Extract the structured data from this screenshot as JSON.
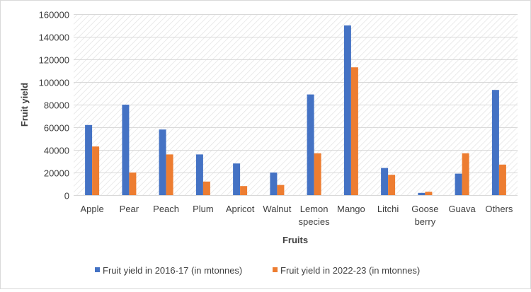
{
  "chart_data": {
    "type": "bar",
    "xlabel": "Fruits",
    "ylabel": "Fruit yield",
    "ylim": [
      0,
      160000
    ],
    "yticks": [
      0,
      20000,
      40000,
      60000,
      80000,
      100000,
      120000,
      140000,
      160000
    ],
    "grid": true,
    "legend_position": "bottom",
    "categories": [
      [
        "Apple"
      ],
      [
        "Pear"
      ],
      [
        "Peach"
      ],
      [
        "Plum"
      ],
      [
        "Apricot"
      ],
      [
        "Walnut"
      ],
      [
        "Lemon",
        "species"
      ],
      [
        "Mango"
      ],
      [
        "Litchi"
      ],
      [
        "Goose",
        "berry"
      ],
      [
        "Guava"
      ],
      [
        "Others"
      ]
    ],
    "series": [
      {
        "name": "Fruit yield in 2016-17 (in mtonnes)",
        "color": "#4472C4",
        "values": [
          62000,
          80000,
          58000,
          36000,
          28000,
          20000,
          89000,
          150000,
          24000,
          2000,
          19000,
          93000
        ]
      },
      {
        "name": "Fruit yield in 2022-23 (in mtonnes)",
        "color": "#ED7D31",
        "values": [
          43000,
          20000,
          36000,
          12000,
          8000,
          9000,
          37000,
          113000,
          18000,
          3000,
          37000,
          27000
        ]
      }
    ]
  }
}
